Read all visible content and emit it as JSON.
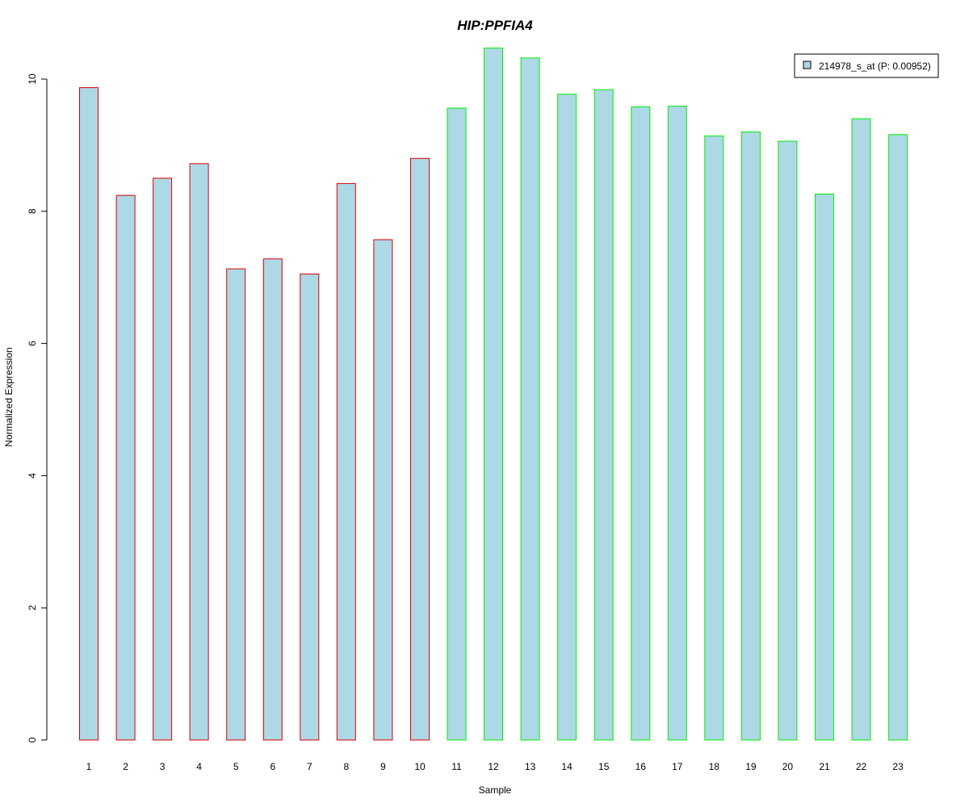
{
  "chart_data": {
    "type": "bar",
    "title": "HIP:PPFIA4",
    "xlabel": "Sample",
    "ylabel": "Normalized Expression",
    "categories": [
      "1",
      "2",
      "3",
      "4",
      "5",
      "6",
      "7",
      "8",
      "9",
      "10",
      "11",
      "12",
      "13",
      "14",
      "15",
      "16",
      "17",
      "18",
      "19",
      "20",
      "21",
      "22",
      "23"
    ],
    "series": [
      {
        "name": "214978_s_at (P: 0.00952)",
        "values": [
          9.87,
          8.24,
          8.5,
          8.72,
          7.13,
          7.28,
          7.05,
          8.42,
          7.57,
          8.8,
          9.56,
          10.47,
          10.32,
          9.77,
          9.84,
          9.58,
          9.59,
          9.14,
          9.2,
          9.06,
          8.26,
          9.4,
          9.16
        ]
      }
    ],
    "groups": [
      1,
      1,
      1,
      1,
      1,
      1,
      1,
      1,
      1,
      1,
      2,
      2,
      2,
      2,
      2,
      2,
      2,
      2,
      2,
      2,
      2,
      2,
      2
    ],
    "ylim": [
      0,
      10.5
    ],
    "yticks": [
      0,
      2,
      4,
      6,
      8,
      10
    ],
    "grid": false,
    "legend_position": "top-right",
    "colors": {
      "bar_fill": "#add8e6",
      "group1_border": "#dd0000",
      "group2_border": "#00ee00",
      "title": "#0000cc",
      "axis": "#000000"
    }
  }
}
